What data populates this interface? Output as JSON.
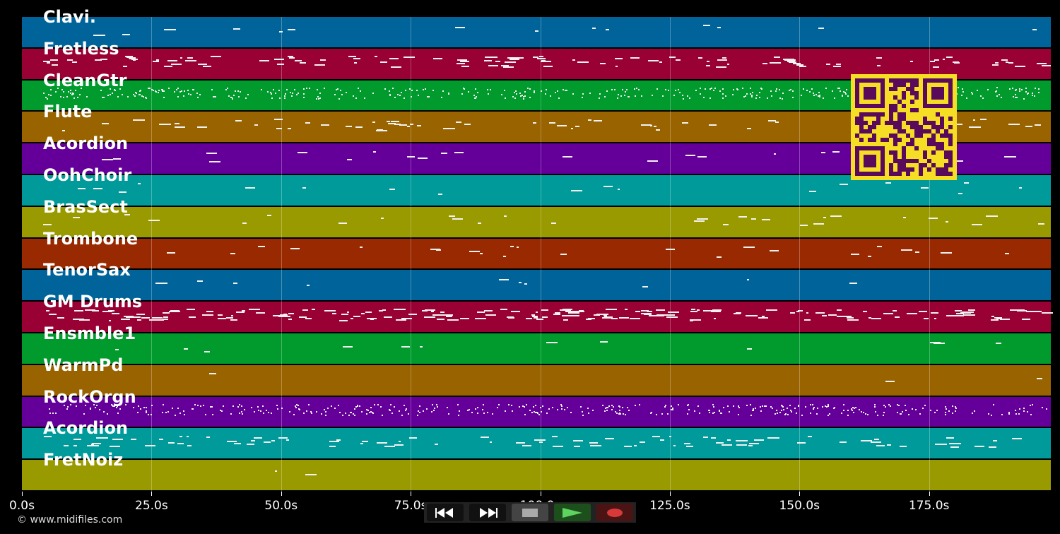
{
  "tracks": [
    {
      "label": "Clavi.",
      "color": "#00649a"
    },
    {
      "label": "Fretless",
      "color": "#990033"
    },
    {
      "label": "CleanGtr",
      "color": "#009a2d"
    },
    {
      "label": "Flute",
      "color": "#996300"
    },
    {
      "label": "Acordion",
      "color": "#640099"
    },
    {
      "label": "OohChoir",
      "color": "#009a9a"
    },
    {
      "label": "BrasSect",
      "color": "#999900"
    },
    {
      "label": "Trombone",
      "color": "#992900"
    },
    {
      "label": "TenorSax",
      "color": "#00649a"
    },
    {
      "label": "GM Drums",
      "color": "#990033"
    },
    {
      "label": "Ensmble1",
      "color": "#009a2d"
    },
    {
      "label": "WarmPd",
      "color": "#996300"
    },
    {
      "label": "RockOrgn",
      "color": "#640099"
    },
    {
      "label": "Acordion",
      "color": "#009a9a"
    },
    {
      "label": "FretNoiz",
      "color": "#999900"
    }
  ],
  "timeline": {
    "max_seconds": 198.5,
    "ticks": [
      "0.0s",
      "25.0s",
      "50.0s",
      "75.0s",
      "100.0s",
      "125.0s",
      "150.0s",
      "175.0s"
    ],
    "tick_values": [
      0,
      25,
      50,
      75,
      100,
      125,
      150,
      175
    ]
  },
  "transport": {
    "rewind_icon": "rewind-icon",
    "forward_icon": "fast-forward-icon",
    "stop_icon": "stop-icon",
    "play_icon": "play-icon",
    "record_icon": "record-icon"
  },
  "footer": {
    "copyright": "© www.midifiles.com"
  },
  "qr_code": {
    "icon": "qr-code-icon",
    "color": "#f6de25",
    "dark": "#5a0a5a"
  }
}
